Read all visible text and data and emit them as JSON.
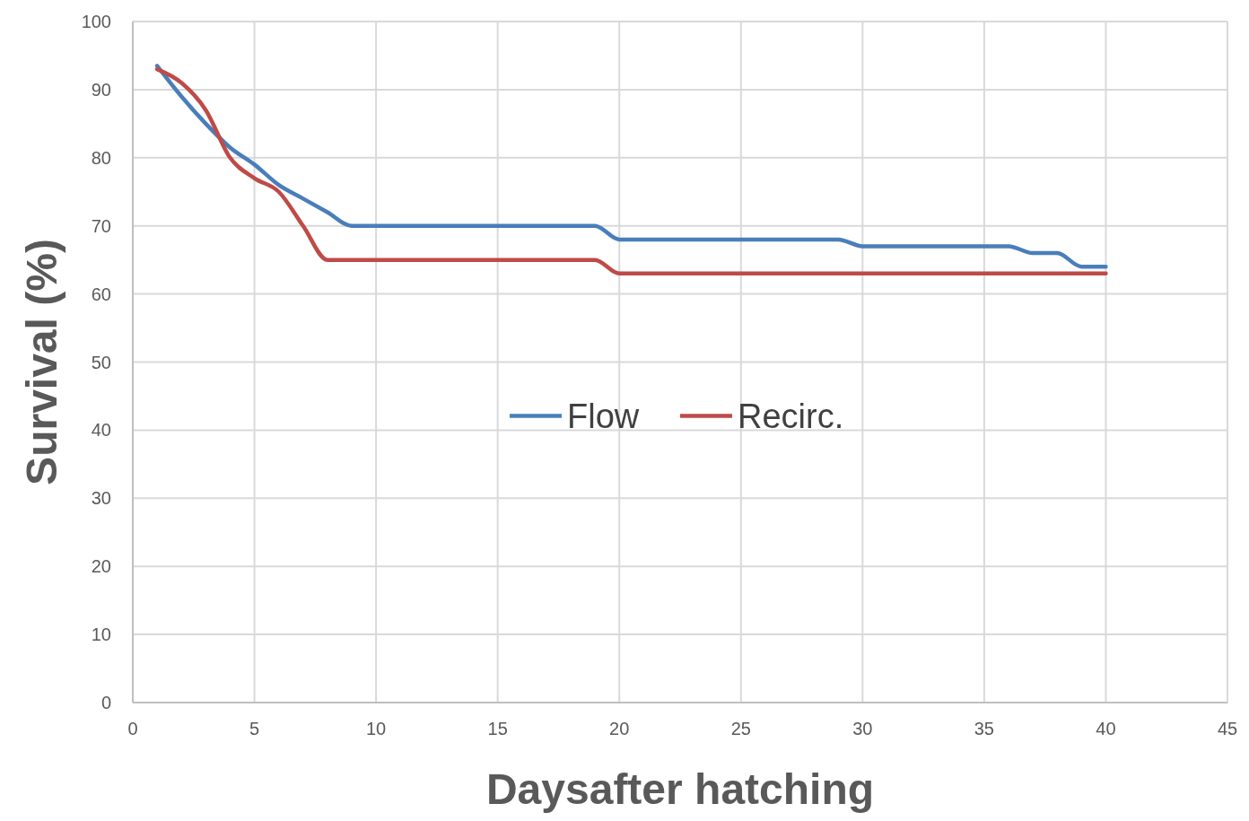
{
  "chart_data": {
    "type": "line",
    "xlabel": "Daysafter hatching",
    "ylabel": "Survival (%)",
    "x": [
      1,
      2,
      3,
      4,
      5,
      6,
      7,
      8,
      9,
      10,
      11,
      12,
      13,
      14,
      15,
      16,
      17,
      18,
      19,
      20,
      21,
      22,
      23,
      24,
      25,
      26,
      27,
      28,
      29,
      30,
      31,
      32,
      33,
      34,
      35,
      36,
      37,
      38,
      39,
      40
    ],
    "series": [
      {
        "name": "Flow",
        "color": "#4a7ebb",
        "values": [
          93.5,
          89,
          85,
          81.5,
          79,
          76,
          74,
          72,
          70,
          70,
          70,
          70,
          70,
          70,
          70,
          70,
          70,
          70,
          70,
          68,
          68,
          68,
          68,
          68,
          68,
          68,
          68,
          68,
          68,
          67,
          67,
          67,
          67,
          67,
          67,
          67,
          66,
          66,
          64,
          64
        ]
      },
      {
        "name": "Recirc.",
        "color": "#be4b48",
        "values": [
          93,
          91,
          87,
          80,
          77,
          75,
          70,
          65,
          65,
          65,
          65,
          65,
          65,
          65,
          65,
          65,
          65,
          65,
          65,
          63,
          63,
          63,
          63,
          63,
          63,
          63,
          63,
          63,
          63,
          63,
          63,
          63,
          63,
          63,
          63,
          63,
          63,
          63,
          63,
          63
        ]
      }
    ],
    "xlim": [
      0,
      45
    ],
    "xticks": [
      0,
      5,
      10,
      15,
      20,
      25,
      30,
      35,
      40,
      45
    ],
    "ylim": [
      0,
      100
    ],
    "yticks": [
      0,
      10,
      20,
      30,
      40,
      50,
      60,
      70,
      80,
      90,
      100
    ],
    "grid": true,
    "legend": "center",
    "marker": "none",
    "line_style": "solid"
  }
}
